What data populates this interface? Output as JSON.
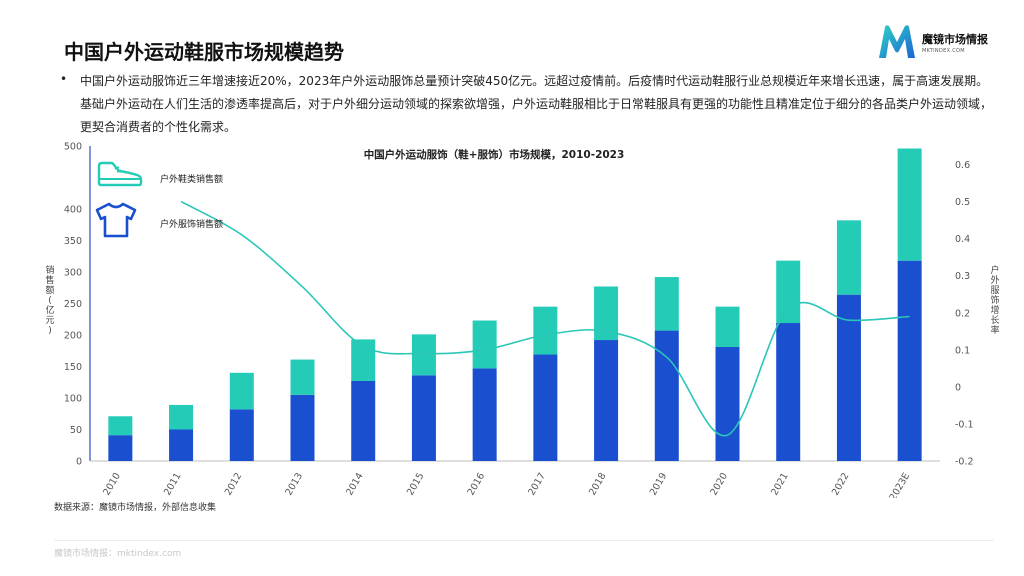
{
  "title": "中国户外运动鞋服市场规模趋势",
  "logo": {
    "brand": "魔镜市场情报",
    "domain": "MKTINDEX.COM"
  },
  "bullet": "中国户外运动服饰近三年增速接近20%，2023年户外运动服饰总量预计突破450亿元。远超过疫情前。后疫情时代运动鞋服行业总规模近年来增长迅速，属于高速发展期。基础户外运动在人们生活的渗透率提高后，对于户外细分运动领域的探索欲增强，户外运动鞋服相比于日常鞋服具有更强的功能性且精准定位于细分的各品类户外运动领域，更契合消费者的个性化需求。",
  "source": "数据来源：魔镜市场情报，外部信息收集",
  "footer": "魔镜市场情报：mktindex.com",
  "colors": {
    "footwear": "#24CBB6",
    "apparel": "#1A4FCF",
    "line": "#2AC6B8",
    "axis": "#2F4FC0"
  },
  "chart_data": {
    "type": "bar",
    "stacked": true,
    "title": "中国户外运动服饰（鞋+服饰）市场规模，2010-2023",
    "categories": [
      "2010",
      "2011",
      "2012",
      "2013",
      "2014",
      "2015",
      "2016",
      "2017",
      "2018",
      "2019",
      "2020",
      "2021",
      "2022",
      "2023E"
    ],
    "series": [
      {
        "name": "户外服饰销售额",
        "type": "bar",
        "icon": "tshirt-icon",
        "color": "#1A4FCF",
        "values": [
          41,
          50,
          82,
          105,
          127,
          136,
          147,
          169,
          192,
          207,
          181,
          219,
          264,
          318
        ]
      },
      {
        "name": "户外鞋类销售额",
        "type": "bar",
        "icon": "shoe-icon",
        "color": "#24CBB6",
        "values": [
          30,
          39,
          58,
          56,
          66,
          65,
          76,
          76,
          85,
          85,
          64,
          99,
          118,
          178
        ]
      },
      {
        "name": "",
        "type": "line",
        "axis": "right",
        "color": "#2AC6B8",
        "values": [
          null,
          0.5,
          0.41,
          0.27,
          0.11,
          0.09,
          0.1,
          0.14,
          0.15,
          0.08,
          -0.13,
          0.21,
          0.18,
          0.19
        ]
      }
    ],
    "ylabel": "销售额(亿元)",
    "y2label": "户外服饰增长率",
    "ylim": [
      0,
      500
    ],
    "yticks": [
      0,
      50,
      100,
      150,
      200,
      250,
      300,
      350,
      400,
      500
    ],
    "y2lim": [
      -0.2,
      0.65
    ],
    "y2ticks": [
      -0.2,
      -0.1,
      0,
      0.1,
      0.2,
      0.3,
      0.4,
      0.5,
      0.6
    ],
    "y2tick_labels": [
      "-0.2",
      "-0.1",
      "0",
      "0.1",
      "0.2",
      "0.3",
      "0.4",
      "0.5",
      "0.6"
    ],
    "grid": false,
    "legend": "top-left"
  }
}
